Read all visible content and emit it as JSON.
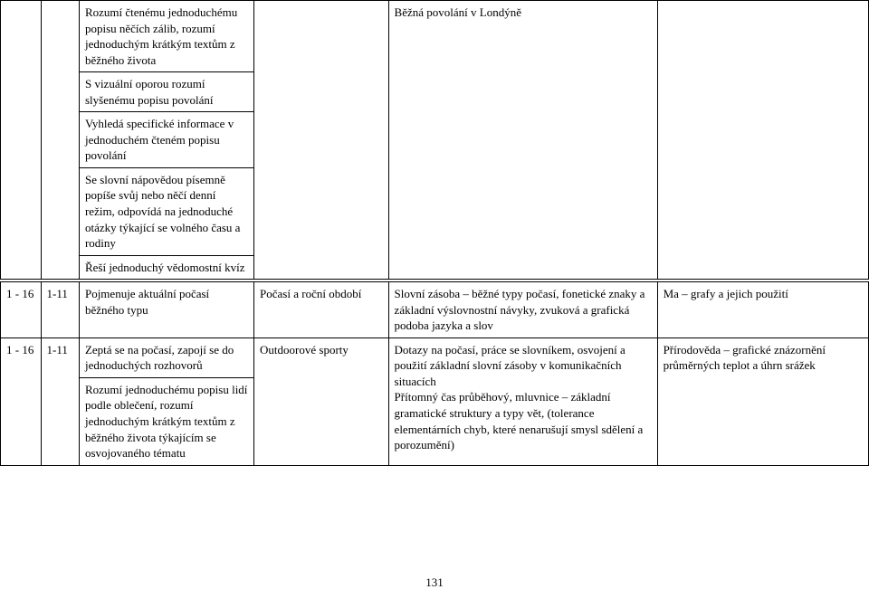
{
  "page_number": "131",
  "columns": {
    "c1_w": 42,
    "c2_w": 40,
    "c3_w": 182,
    "c4_w": 140,
    "c5_w": 280,
    "c6_w": 220
  },
  "rows": [
    {
      "c1": "",
      "c2": "",
      "c3_parts": [
        "Rozumí čtenému jednoduchému popisu něčích zálib, rozumí jednoduchým krátkým textům z běžného života",
        "S  vizuální oporou rozumí slyšenému popisu povolání",
        "Vyhledá specifické informace v jednoduchém čteném popisu povolání",
        "Se slovní nápovědou písemně popíše svůj nebo něčí denní režim, odpovídá na jednoduché otázky týkající se volného času a rodiny",
        "Řeší jednoduchý vědomostní kvíz"
      ],
      "c4": "",
      "c5": "Běžná povolání v Londýně",
      "c6": ""
    },
    {
      "c1": "1 - 16",
      "c2": "1-11",
      "c3_parts": [
        "Pojmenuje aktuální počasí běžného typu"
      ],
      "c4": "Počasí a roční období",
      "c5": "Slovní zásoba – běžné typy počasí, fonetické znaky a základní výslovnostní návyky, zvuková a grafická podoba jazyka a slov",
      "c6": "Ma – grafy a jejich použití"
    },
    {
      "c1": "1 - 16",
      "c2": "1-11",
      "c3_parts": [
        "Zeptá se na počasí, zapojí se do jednoduchých rozhovorů",
        "Rozumí jednoduchému popisu lidí podle oblečení, rozumí jednoduchým krátkým textům z běžného života týkajícím se osvojovaného tématu"
      ],
      "c4": "Outdoorové sporty",
      "c5": "Dotazy na počasí, práce se slovníkem, osvojení a použití základní slovní zásoby v komunikačních situacích\nPřítomný čas průběhový, mluvnice – základní gramatické struktury a typy vět, (tolerance elementárních chyb, které nenarušují smysl sdělení a porozumění)",
      "c6": "Přírodověda – grafické znázornění průměrných teplot a úhrn srážek"
    }
  ]
}
